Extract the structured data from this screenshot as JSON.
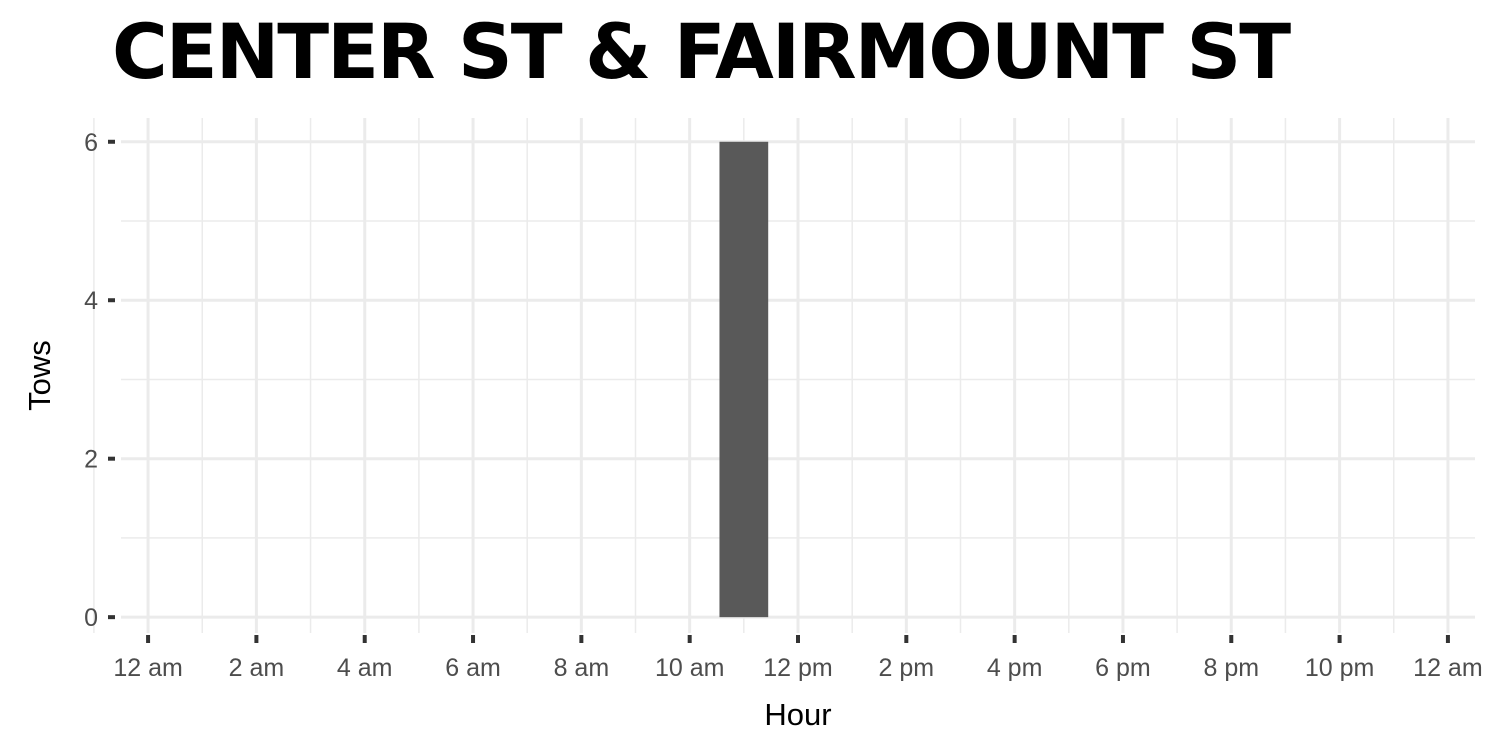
{
  "chart_data": {
    "type": "bar",
    "title": "CENTER ST & FAIRMOUNT ST",
    "xlabel": "Hour",
    "ylabel": "Tows",
    "x_tick_labels": [
      "12 am",
      "2 am",
      "4 am",
      "6 am",
      "8 am",
      "10 am",
      "12 pm",
      "2 pm",
      "4 pm",
      "6 pm",
      "8 pm",
      "10 pm",
      "12 am"
    ],
    "y_ticks": [
      0,
      2,
      4,
      6
    ],
    "xlim": [
      -0.5,
      24.5
    ],
    "ylim": [
      -0.2,
      6.3
    ],
    "bars": [
      {
        "hour": 11,
        "value": 6
      }
    ],
    "bar_color": "#595959",
    "grid": true,
    "grid_color": "#ebebeb"
  }
}
